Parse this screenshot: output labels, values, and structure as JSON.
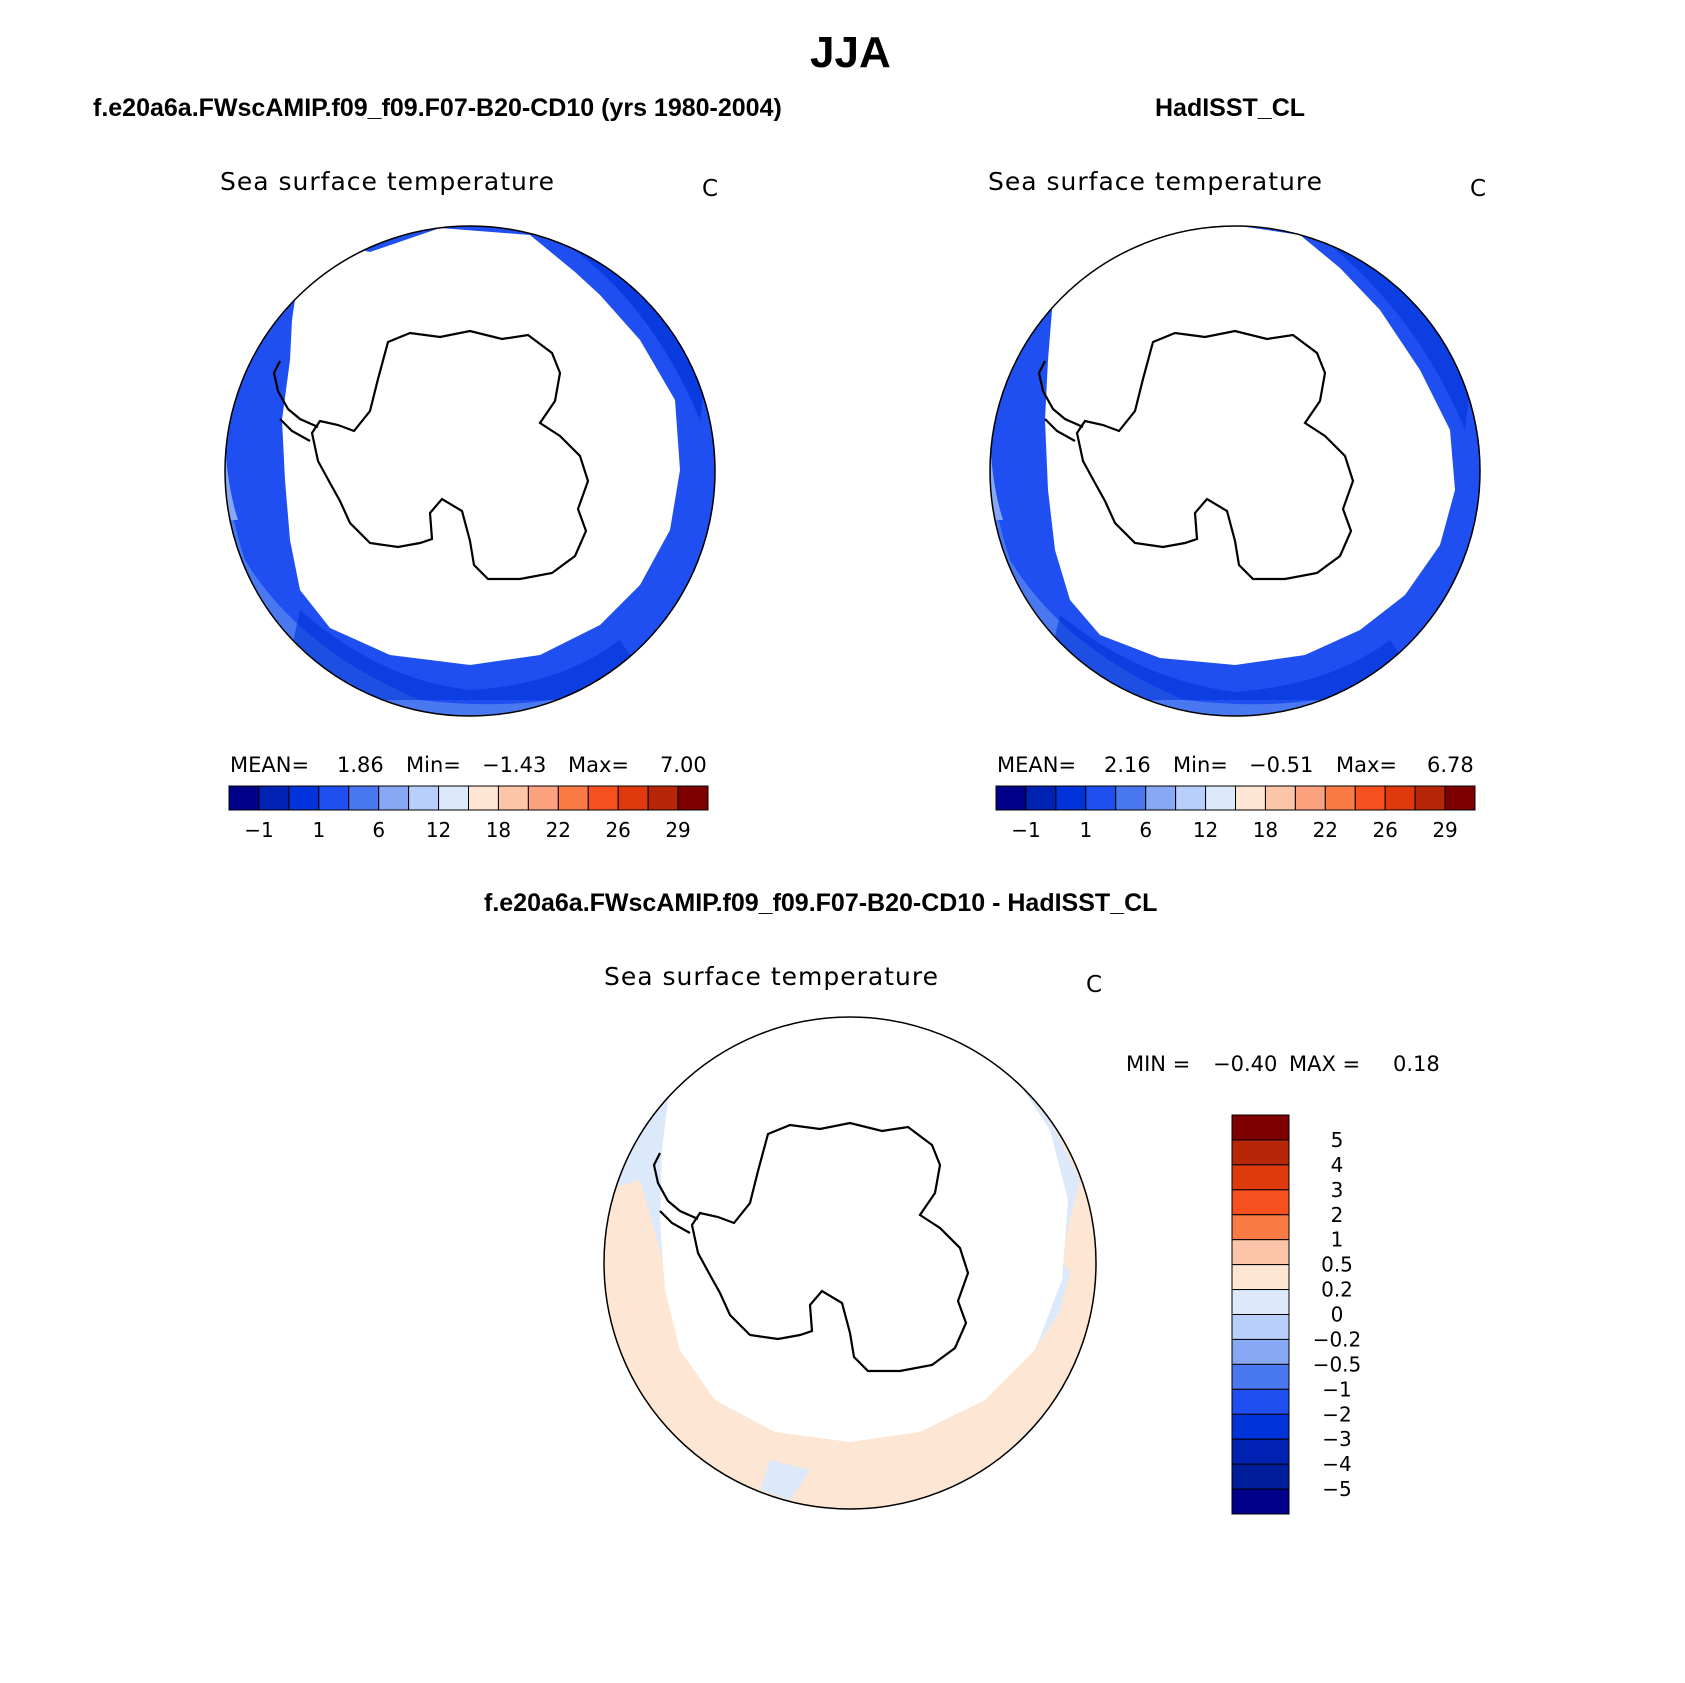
{
  "season": "JJA",
  "panels": [
    {
      "id": "model",
      "run_title": "f.e20a6a.FWscAMIP.f09_f09.F07-B20-CD10 (yrs 1980-2004)",
      "field": "Sea surface temperature",
      "units": "C",
      "stats": {
        "mean_label": "MEAN=",
        "mean": "1.86",
        "min_label": "Min=",
        "min": "−1.43",
        "max_label": "Max=",
        "max": "7.00"
      }
    },
    {
      "id": "obs",
      "run_title": "HadISST_CL",
      "field": "Sea surface temperature",
      "units": "C",
      "stats": {
        "mean_label": "MEAN=",
        "mean": "2.16",
        "min_label": "Min=",
        "min": "−0.51",
        "max_label": "Max=",
        "max": "6.78"
      }
    },
    {
      "id": "diff",
      "run_title": "f.e20a6a.FWscAMIP.f09_f09.F07-B20-CD10 - HadISST_CL",
      "field": "Sea surface temperature",
      "units": "C",
      "stats": {
        "min_label": "MIN =",
        "min": "−0.40",
        "max_label": "MAX =",
        "max": "0.18"
      }
    }
  ],
  "colorbar_top": {
    "colors": [
      "#00008b",
      "#0022b3",
      "#0033d9",
      "#1f4ff0",
      "#4a78f0",
      "#86a8f5",
      "#b9cffb",
      "#dbe9fb",
      "#fde6d3",
      "#fcc5a8",
      "#fca17e",
      "#fb7b47",
      "#f5501e",
      "#df3a0d",
      "#b62607",
      "#7f0000"
    ],
    "tick_labels": [
      "−1",
      "1",
      "6",
      "12",
      "18",
      "22",
      "26",
      "29"
    ]
  },
  "colorbar_diff": {
    "colors_top_to_bottom": [
      "#7f0000",
      "#b62607",
      "#df3a0d",
      "#f5501e",
      "#fb7b47",
      "#fcc5a8",
      "#fde6d3",
      "#dbe9fb",
      "#b9cffb",
      "#86a8f5",
      "#4a78f0",
      "#1f4ff0",
      "#0033d9",
      "#0022b3",
      "#001d9a",
      "#00008b"
    ],
    "tick_labels": [
      "5",
      "4",
      "3",
      "2",
      "1",
      "0.5",
      "0.2",
      "0",
      "−0.2",
      "−0.5",
      "−1",
      "−2",
      "−3",
      "−4",
      "−5"
    ]
  }
}
